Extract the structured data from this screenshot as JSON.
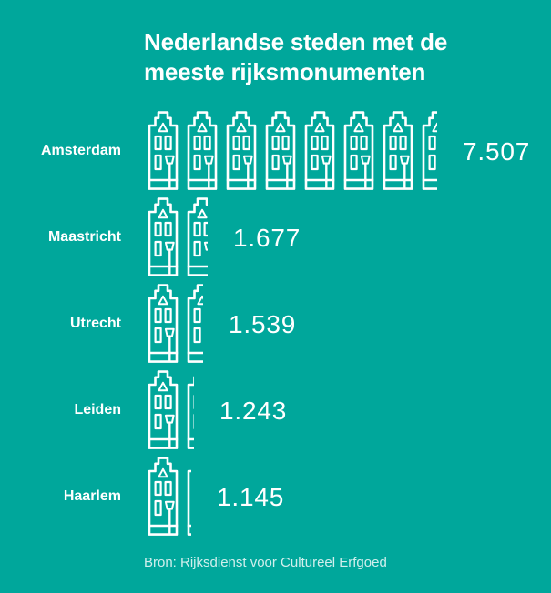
{
  "page": {
    "background_color": "#00a79b",
    "text_color": "#ffffff"
  },
  "header": {
    "title_line1": "Nederlandse steden met de",
    "title_line2": "meeste rijksmonumenten"
  },
  "footer": {
    "source": "Bron: Rijksdienst voor Cultureel Erfgoed"
  },
  "chart_data": {
    "type": "bar",
    "subtype": "pictogram-bar",
    "title": "Nederlandse steden met de meeste rijksmonumenten",
    "icon": "canal-house",
    "icon_unit": 1000,
    "legend_position": "none",
    "grid": false,
    "categories": [
      "Amsterdam",
      "Maastricht",
      "Utrecht",
      "Leiden",
      "Haarlem"
    ],
    "values": [
      7507,
      1677,
      1539,
      1243,
      1145
    ],
    "value_labels": [
      "7.507",
      "1.677",
      "1.539",
      "1.243",
      "1.145"
    ],
    "xlabel": "",
    "ylabel": "",
    "source": "Bron: Rijksdienst voor Cultureel Erfgoed",
    "colors": {
      "background": "#00a79b",
      "icon_stroke": "#ffffff",
      "label_text": "#ffffff",
      "value_text": "#ffffff"
    }
  }
}
